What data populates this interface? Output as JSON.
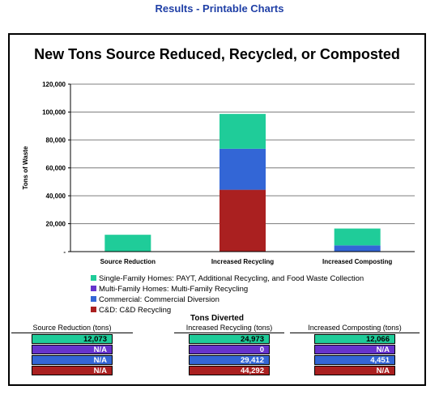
{
  "page": {
    "title": "Results - Printable Charts"
  },
  "chart_data": {
    "type": "bar",
    "stacked": true,
    "title": "New Tons Source Reduced, Recycled, or Composted",
    "xlabel": "",
    "ylabel": "Tons of Waste",
    "ylim": [
      0,
      120000
    ],
    "yticks": [
      0,
      20000,
      40000,
      60000,
      80000,
      100000,
      120000
    ],
    "ytick_labels": [
      "-",
      "20,000",
      "40,000",
      "60,000",
      "80,000",
      "100,000",
      "120,000"
    ],
    "grid": true,
    "legend_position": "bottom-left",
    "categories": [
      "Source Reduction",
      "Increased Recycling",
      "Increased Composting"
    ],
    "series": [
      {
        "name": "C&D: C&D Recycling",
        "color": "#aa2020",
        "values": [
          0,
          44292,
          0
        ]
      },
      {
        "name": "Commercial: Commercial Diversion",
        "color": "#3366d6",
        "values": [
          0,
          29412,
          4451
        ]
      },
      {
        "name": "Multi-Family Homes: Multi-Family Recycling",
        "color": "#6633cc",
        "values": [
          0,
          0,
          0
        ]
      },
      {
        "name": "Single-Family Homes: PAYT, Additional Recycling, and Food Waste Collection",
        "color": "#1fcc99",
        "values": [
          12073,
          24973,
          12066
        ]
      }
    ]
  },
  "legend": {
    "items": [
      {
        "label": "Single-Family Homes: PAYT, Additional Recycling, and Food Waste Collection",
        "color": "#1fcc99"
      },
      {
        "label": "Multi-Family Homes: Multi-Family Recycling",
        "color": "#6633cc"
      },
      {
        "label": "Commercial: Commercial Diversion",
        "color": "#3366d6"
      },
      {
        "label": "C&D: C&D Recycling",
        "color": "#aa2020"
      }
    ]
  },
  "tons_diverted": {
    "title": "Tons Diverted",
    "row_colors": [
      "#1fcc99",
      "#6633cc",
      "#3366d6",
      "#aa2020"
    ],
    "columns": [
      {
        "header": "Source Reduction (tons)",
        "values": [
          "12,073",
          "N/A",
          "N/A",
          "N/A"
        ]
      },
      {
        "header": "Increased Recycling (tons)",
        "values": [
          "24,973",
          "0",
          "29,412",
          "44,292"
        ]
      },
      {
        "header": "Increased Composting (tons)",
        "values": [
          "12,066",
          "N/A",
          "4,451",
          "N/A"
        ]
      }
    ]
  }
}
